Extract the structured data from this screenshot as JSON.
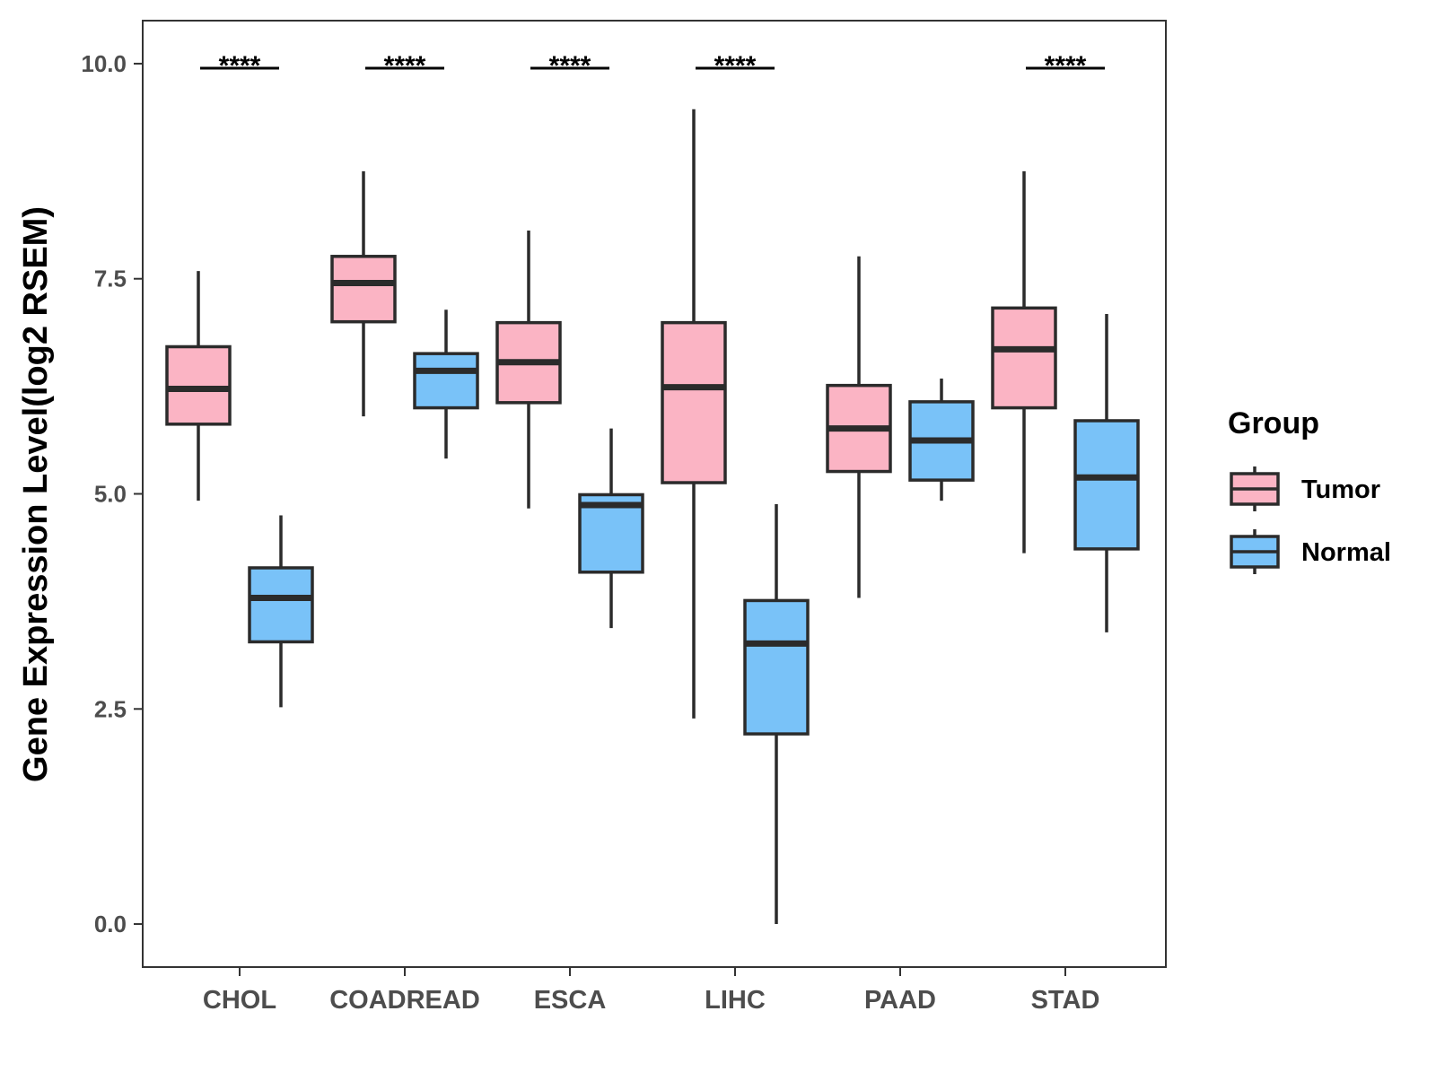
{
  "chart_data": {
    "type": "boxplot",
    "title": "",
    "xlabel": "",
    "ylabel": "Gene Expression Level(log2 RSEM)",
    "ylim": [
      -0.5,
      10.5
    ],
    "yticks": [
      0.0,
      2.5,
      5.0,
      7.5,
      10.0
    ],
    "ytick_labels": [
      "0.0",
      "2.5",
      "5.0",
      "7.5",
      "10.0"
    ],
    "categories": [
      "CHOL",
      "COADREAD",
      "ESCA",
      "LIHC",
      "PAAD",
      "STAD"
    ],
    "legend": {
      "title": "Group",
      "placement": "right"
    },
    "series": [
      {
        "name": "Tumor",
        "color": "#FBB4C4",
        "boxes": [
          {
            "category": "CHOL",
            "whisker_low": 4.92,
            "q1": 5.81,
            "median": 6.22,
            "q3": 6.71,
            "whisker_high": 7.59
          },
          {
            "category": "COADREAD",
            "whisker_low": 5.9,
            "q1": 7.0,
            "median": 7.45,
            "q3": 7.76,
            "whisker_high": 8.75
          },
          {
            "category": "ESCA",
            "whisker_low": 4.83,
            "q1": 6.06,
            "median": 6.53,
            "q3": 6.99,
            "whisker_high": 8.06
          },
          {
            "category": "LIHC",
            "whisker_low": 2.39,
            "q1": 5.13,
            "median": 6.24,
            "q3": 6.99,
            "whisker_high": 9.47
          },
          {
            "category": "PAAD",
            "whisker_low": 3.79,
            "q1": 5.26,
            "median": 5.76,
            "q3": 6.26,
            "whisker_high": 7.76
          },
          {
            "category": "STAD",
            "whisker_low": 4.31,
            "q1": 6.0,
            "median": 6.68,
            "q3": 7.16,
            "whisker_high": 8.75
          }
        ]
      },
      {
        "name": "Normal",
        "color": "#79C2F8",
        "boxes": [
          {
            "category": "CHOL",
            "whisker_low": 2.52,
            "q1": 3.28,
            "median": 3.79,
            "q3": 4.14,
            "whisker_high": 4.75
          },
          {
            "category": "COADREAD",
            "whisker_low": 5.41,
            "q1": 6.0,
            "median": 6.43,
            "q3": 6.63,
            "whisker_high": 7.14
          },
          {
            "category": "ESCA",
            "whisker_low": 3.44,
            "q1": 4.09,
            "median": 4.87,
            "q3": 4.99,
            "whisker_high": 5.76
          },
          {
            "category": "LIHC",
            "whisker_low": 0.0,
            "q1": 2.21,
            "median": 3.26,
            "q3": 3.76,
            "whisker_high": 4.88
          },
          {
            "category": "PAAD",
            "whisker_low": 4.92,
            "q1": 5.16,
            "median": 5.62,
            "q3": 6.07,
            "whisker_high": 6.34
          },
          {
            "category": "STAD",
            "whisker_low": 3.39,
            "q1": 4.36,
            "median": 5.19,
            "q3": 5.85,
            "whisker_high": 7.09
          }
        ]
      }
    ],
    "significance": [
      {
        "category": "CHOL",
        "label": "****"
      },
      {
        "category": "COADREAD",
        "label": "****"
      },
      {
        "category": "ESCA",
        "label": "****"
      },
      {
        "category": "LIHC",
        "label": "****"
      },
      {
        "category": "STAD",
        "label": "****"
      }
    ],
    "significance_level": 10.0
  }
}
